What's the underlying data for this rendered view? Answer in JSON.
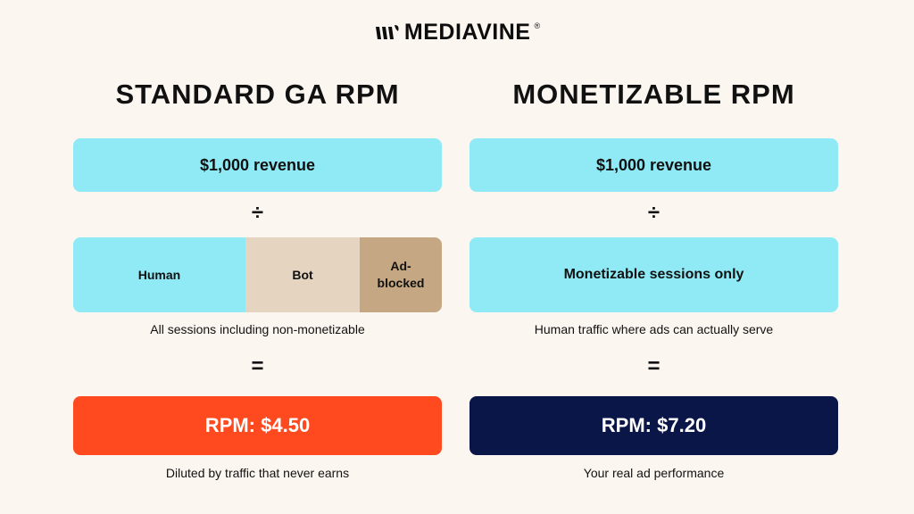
{
  "logo": {
    "text": "MEDIAVINE",
    "registered": "®"
  },
  "left": {
    "title": "STANDARD GA RPM",
    "revenue": "$1,000 revenue",
    "divide": "÷",
    "segments": {
      "human": "Human",
      "bot": "Bot",
      "adblocked": "Ad-blocked"
    },
    "sessions_caption": "All sessions including non-monetizable",
    "equals": "=",
    "rpm": "RPM: $4.50",
    "rpm_caption": "Diluted by traffic that never earns"
  },
  "right": {
    "title": "MONETIZABLE RPM",
    "revenue": "$1,000 revenue",
    "divide": "÷",
    "sessions": "Monetizable sessions only",
    "sessions_caption": "Human traffic where ads can actually serve",
    "equals": "=",
    "rpm": "RPM: $7.20",
    "rpm_caption": "Your real ad performance"
  },
  "colors": {
    "background": "#fcf6f1",
    "cyan": "#90eaf6",
    "bot": "#e4d4c0",
    "adblocked": "#c5a883",
    "orange": "#ff4a1f",
    "navy": "#0b1648"
  }
}
